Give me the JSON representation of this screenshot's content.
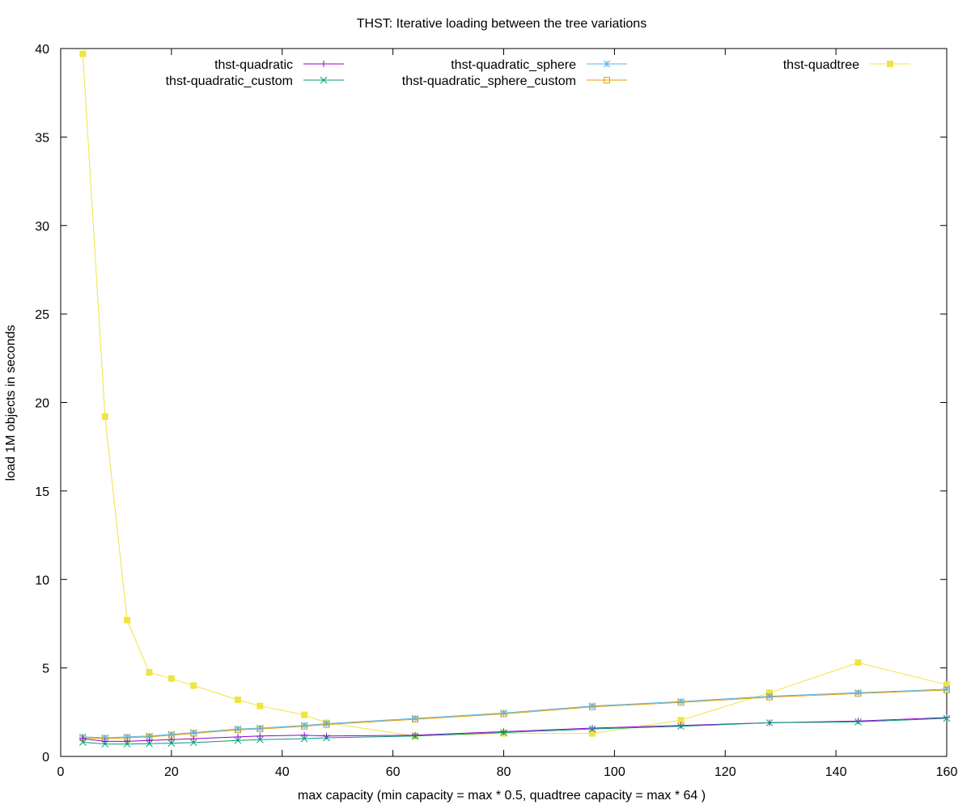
{
  "chart_data": {
    "type": "line",
    "title": "THST: Iterative loading between the tree variations",
    "xlabel": "max capacity (min capacity = max * 0.5, quadtree capacity = max * 64 )",
    "ylabel": "load 1M objects in seconds",
    "xlim": [
      0,
      160
    ],
    "ylim": [
      0,
      40
    ],
    "xticks": [
      0,
      20,
      40,
      60,
      80,
      100,
      120,
      140,
      160
    ],
    "yticks": [
      0,
      5,
      10,
      15,
      20,
      25,
      30,
      35,
      40
    ],
    "grid": false,
    "legend_position": "top",
    "x": [
      4,
      8,
      12,
      16,
      20,
      24,
      32,
      36,
      44,
      48,
      64,
      80,
      96,
      112,
      128,
      144,
      160
    ],
    "series": [
      {
        "name": "thst-quadratic",
        "color": "#9400d3",
        "marker": "plus",
        "values": [
          1.0,
          0.85,
          0.85,
          0.9,
          0.95,
          1.0,
          1.1,
          1.15,
          1.2,
          1.15,
          1.2,
          1.4,
          1.6,
          1.75,
          1.9,
          2.0,
          2.2
        ]
      },
      {
        "name": "thst-quadratic_custom",
        "color": "#009e73",
        "marker": "cross",
        "values": [
          0.8,
          0.7,
          0.7,
          0.72,
          0.75,
          0.78,
          0.9,
          0.95,
          1.0,
          1.05,
          1.15,
          1.35,
          1.55,
          1.7,
          1.9,
          1.95,
          2.15
        ]
      },
      {
        "name": "thst-quadratic_sphere",
        "color": "#56b4e9",
        "marker": "star",
        "values": [
          1.1,
          1.05,
          1.1,
          1.15,
          1.25,
          1.35,
          1.55,
          1.6,
          1.75,
          1.85,
          2.15,
          2.45,
          2.85,
          3.1,
          3.4,
          3.6,
          3.8
        ]
      },
      {
        "name": "thst-quadratic_sphere_custom",
        "color": "#e69f00",
        "marker": "square-open",
        "values": [
          1.05,
          1.0,
          1.05,
          1.1,
          1.2,
          1.3,
          1.5,
          1.55,
          1.7,
          1.8,
          2.1,
          2.4,
          2.8,
          3.05,
          3.35,
          3.55,
          3.75
        ]
      },
      {
        "name": "thst-quadtree",
        "color": "#f0e442",
        "marker": "square-filled",
        "values": [
          39.7,
          19.2,
          7.7,
          4.75,
          4.4,
          4.0,
          3.2,
          2.85,
          2.35,
          1.9,
          1.15,
          1.3,
          1.3,
          2.05,
          3.6,
          5.3,
          4.05
        ]
      }
    ]
  }
}
